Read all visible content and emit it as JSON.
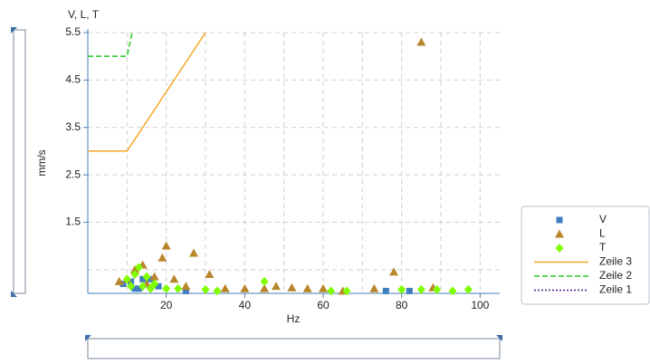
{
  "chart_data": {
    "type": "scatter",
    "title": "V, L, T",
    "y_label": "mm/s",
    "x_label": "Hz",
    "xlim": [
      0,
      105
    ],
    "ylim": [
      0,
      5.5
    ],
    "xticks": [
      20,
      40,
      60,
      80,
      100
    ],
    "yticks": [
      1.5,
      2.5,
      3.5,
      4.5,
      5.5
    ],
    "x_minor_ticks": [
      10,
      30,
      50,
      70,
      90
    ],
    "y_minor_ticks": [
      0.5
    ],
    "grid": true,
    "legend": "right",
    "series": [
      {
        "name": "V",
        "color": "#3f7fbf",
        "marker": "square",
        "x": [
          16,
          9,
          11,
          13,
          18,
          76,
          82,
          25,
          14,
          12
        ],
        "y": [
          0.3,
          0.2,
          0.25,
          0.1,
          0.15,
          0.05,
          0.05,
          0.05,
          0.3,
          0.1
        ]
      },
      {
        "name": "L",
        "color": "#b8862b",
        "marker": "triangle",
        "x": [
          85,
          27,
          20,
          19,
          14,
          12,
          78,
          31,
          17,
          22,
          8,
          10,
          15,
          25,
          35,
          40,
          45,
          52,
          60,
          73,
          88,
          48,
          56,
          65
        ],
        "y": [
          5.3,
          0.85,
          1.0,
          0.75,
          0.6,
          0.5,
          0.45,
          0.4,
          0.35,
          0.3,
          0.25,
          0.3,
          0.2,
          0.15,
          0.1,
          0.1,
          0.1,
          0.12,
          0.1,
          0.1,
          0.12,
          0.15,
          0.1,
          0.05
        ]
      },
      {
        "name": "T",
        "color": "#7fff00",
        "marker": "diamond",
        "x": [
          45,
          13,
          12,
          10,
          15,
          17,
          14,
          20,
          23,
          30,
          33,
          62,
          66,
          80,
          85,
          89,
          93,
          97,
          11,
          16
        ],
        "y": [
          0.25,
          0.55,
          0.4,
          0.3,
          0.35,
          0.2,
          0.15,
          0.1,
          0.1,
          0.08,
          0.05,
          0.05,
          0.05,
          0.08,
          0.08,
          0.08,
          0.05,
          0.08,
          0.15,
          0.1
        ]
      }
    ],
    "lines": [
      {
        "name": "Zeile 3",
        "color": "#f5a623",
        "style": "solid",
        "x": [
          0,
          10,
          30
        ],
        "y": [
          3.0,
          3.0,
          5.5
        ]
      },
      {
        "name": "Zeile 2",
        "color": "#22cc22",
        "style": "dashed",
        "x": [
          0,
          10,
          11.3
        ],
        "y": [
          5.0,
          5.0,
          5.5
        ]
      },
      {
        "name": "Zeile 1",
        "color": "#4b1c8c",
        "style": "dotted",
        "x": [],
        "y": []
      }
    ]
  }
}
